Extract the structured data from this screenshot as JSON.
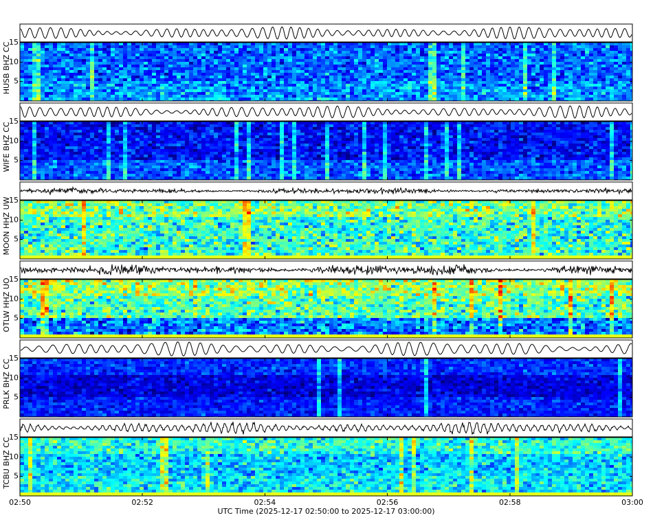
{
  "chart_data": [
    {
      "type": "spectrogram",
      "ylabel": "HUSB BHZ CC",
      "ylim": [
        0,
        15
      ],
      "yticks": [
        5,
        10,
        15
      ]
    },
    {
      "type": "spectrogram",
      "ylabel": "WIFE BHZ CC",
      "ylim": [
        0,
        15
      ],
      "yticks": [
        5,
        10,
        15
      ]
    },
    {
      "type": "spectrogram",
      "ylabel": "MOON HHZ UW",
      "ylim": [
        0,
        15
      ],
      "yticks": [
        5,
        10,
        15
      ]
    },
    {
      "type": "spectrogram",
      "ylabel": "OTLW HHZ UO",
      "ylim": [
        0,
        15
      ],
      "yticks": [
        5,
        10,
        15
      ]
    },
    {
      "type": "spectrogram",
      "ylabel": "PRLK BHZ CC",
      "ylim": [
        0,
        15
      ],
      "yticks": [
        5,
        10,
        15
      ]
    },
    {
      "type": "spectrogram",
      "ylabel": "TCBU BHZ CC",
      "ylim": [
        0,
        15
      ],
      "yticks": [
        5,
        10,
        15
      ],
      "xlim": [
        0,
        10
      ],
      "xticks": [
        {
          "value": 0,
          "label": "02:50"
        },
        {
          "value": 2,
          "label": "02:52"
        },
        {
          "value": 4,
          "label": "02:54"
        },
        {
          "value": 6,
          "label": "02:56"
        },
        {
          "value": 8,
          "label": "02:58"
        },
        {
          "value": 10,
          "label": "03:00"
        }
      ],
      "xlabel": "UTC Time (2025-12-17 02:50:00 to 2025-12-17 03:00:00)"
    }
  ]
}
